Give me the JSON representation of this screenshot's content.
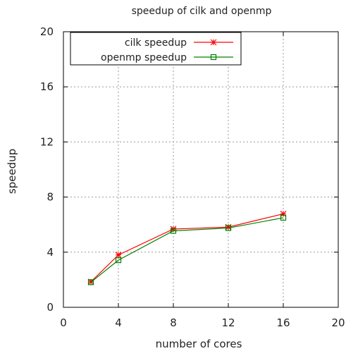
{
  "chart_data": {
    "type": "line",
    "title": "speedup of cilk and openmp",
    "xlabel": "number of cores",
    "ylabel": "speedup",
    "xlim": [
      0,
      20
    ],
    "ylim": [
      0,
      20
    ],
    "xticks": [
      0,
      4,
      8,
      12,
      16,
      20
    ],
    "yticks": [
      0,
      4,
      8,
      12,
      16,
      20
    ],
    "grid": true,
    "legend_position": "top-left",
    "series": [
      {
        "name": "cilk speedup",
        "marker": "star",
        "color": "#ff0000",
        "x": [
          2,
          4,
          8,
          12,
          16
        ],
        "y": [
          1.85,
          3.8,
          5.68,
          5.82,
          6.78
        ]
      },
      {
        "name": "openmp speedup",
        "marker": "square",
        "color": "#008000",
        "x": [
          2,
          4,
          8,
          12,
          16
        ],
        "y": [
          1.82,
          3.42,
          5.55,
          5.75,
          6.5
        ]
      }
    ]
  }
}
